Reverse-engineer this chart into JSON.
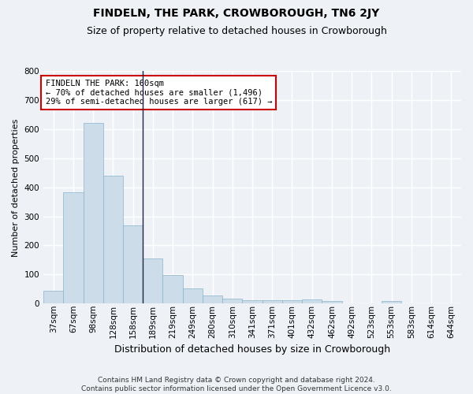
{
  "title": "FINDELN, THE PARK, CROWBOROUGH, TN6 2JY",
  "subtitle": "Size of property relative to detached houses in Crowborough",
  "xlabel": "Distribution of detached houses by size in Crowborough",
  "ylabel": "Number of detached properties",
  "categories": [
    "37sqm",
    "67sqm",
    "98sqm",
    "128sqm",
    "158sqm",
    "189sqm",
    "219sqm",
    "249sqm",
    "280sqm",
    "310sqm",
    "341sqm",
    "371sqm",
    "401sqm",
    "432sqm",
    "462sqm",
    "492sqm",
    "523sqm",
    "553sqm",
    "583sqm",
    "614sqm",
    "644sqm"
  ],
  "values": [
    45,
    383,
    622,
    441,
    268,
    155,
    97,
    52,
    28,
    18,
    11,
    12,
    12,
    13,
    8,
    0,
    0,
    8,
    0,
    0,
    0
  ],
  "bar_color": "#ccdce8",
  "bar_edge_color": "#8ab4cc",
  "vline_x": 4.5,
  "vline_color": "#222244",
  "annotation_text": "FINDELN THE PARK: 160sqm\n← 70% of detached houses are smaller (1,496)\n29% of semi-detached houses are larger (617) →",
  "annotation_box_color": "white",
  "annotation_box_edge_color": "#cc0000",
  "ylim": [
    0,
    800
  ],
  "yticks": [
    0,
    100,
    200,
    300,
    400,
    500,
    600,
    700,
    800
  ],
  "background_color": "#eef2f7",
  "grid_color": "white",
  "footer": "Contains HM Land Registry data © Crown copyright and database right 2024.\nContains public sector information licensed under the Open Government Licence v3.0.",
  "title_fontsize": 10,
  "subtitle_fontsize": 9,
  "ylabel_fontsize": 8,
  "xlabel_fontsize": 9,
  "tick_fontsize": 7.5,
  "annotation_fontsize": 7.5,
  "footer_fontsize": 6.5
}
